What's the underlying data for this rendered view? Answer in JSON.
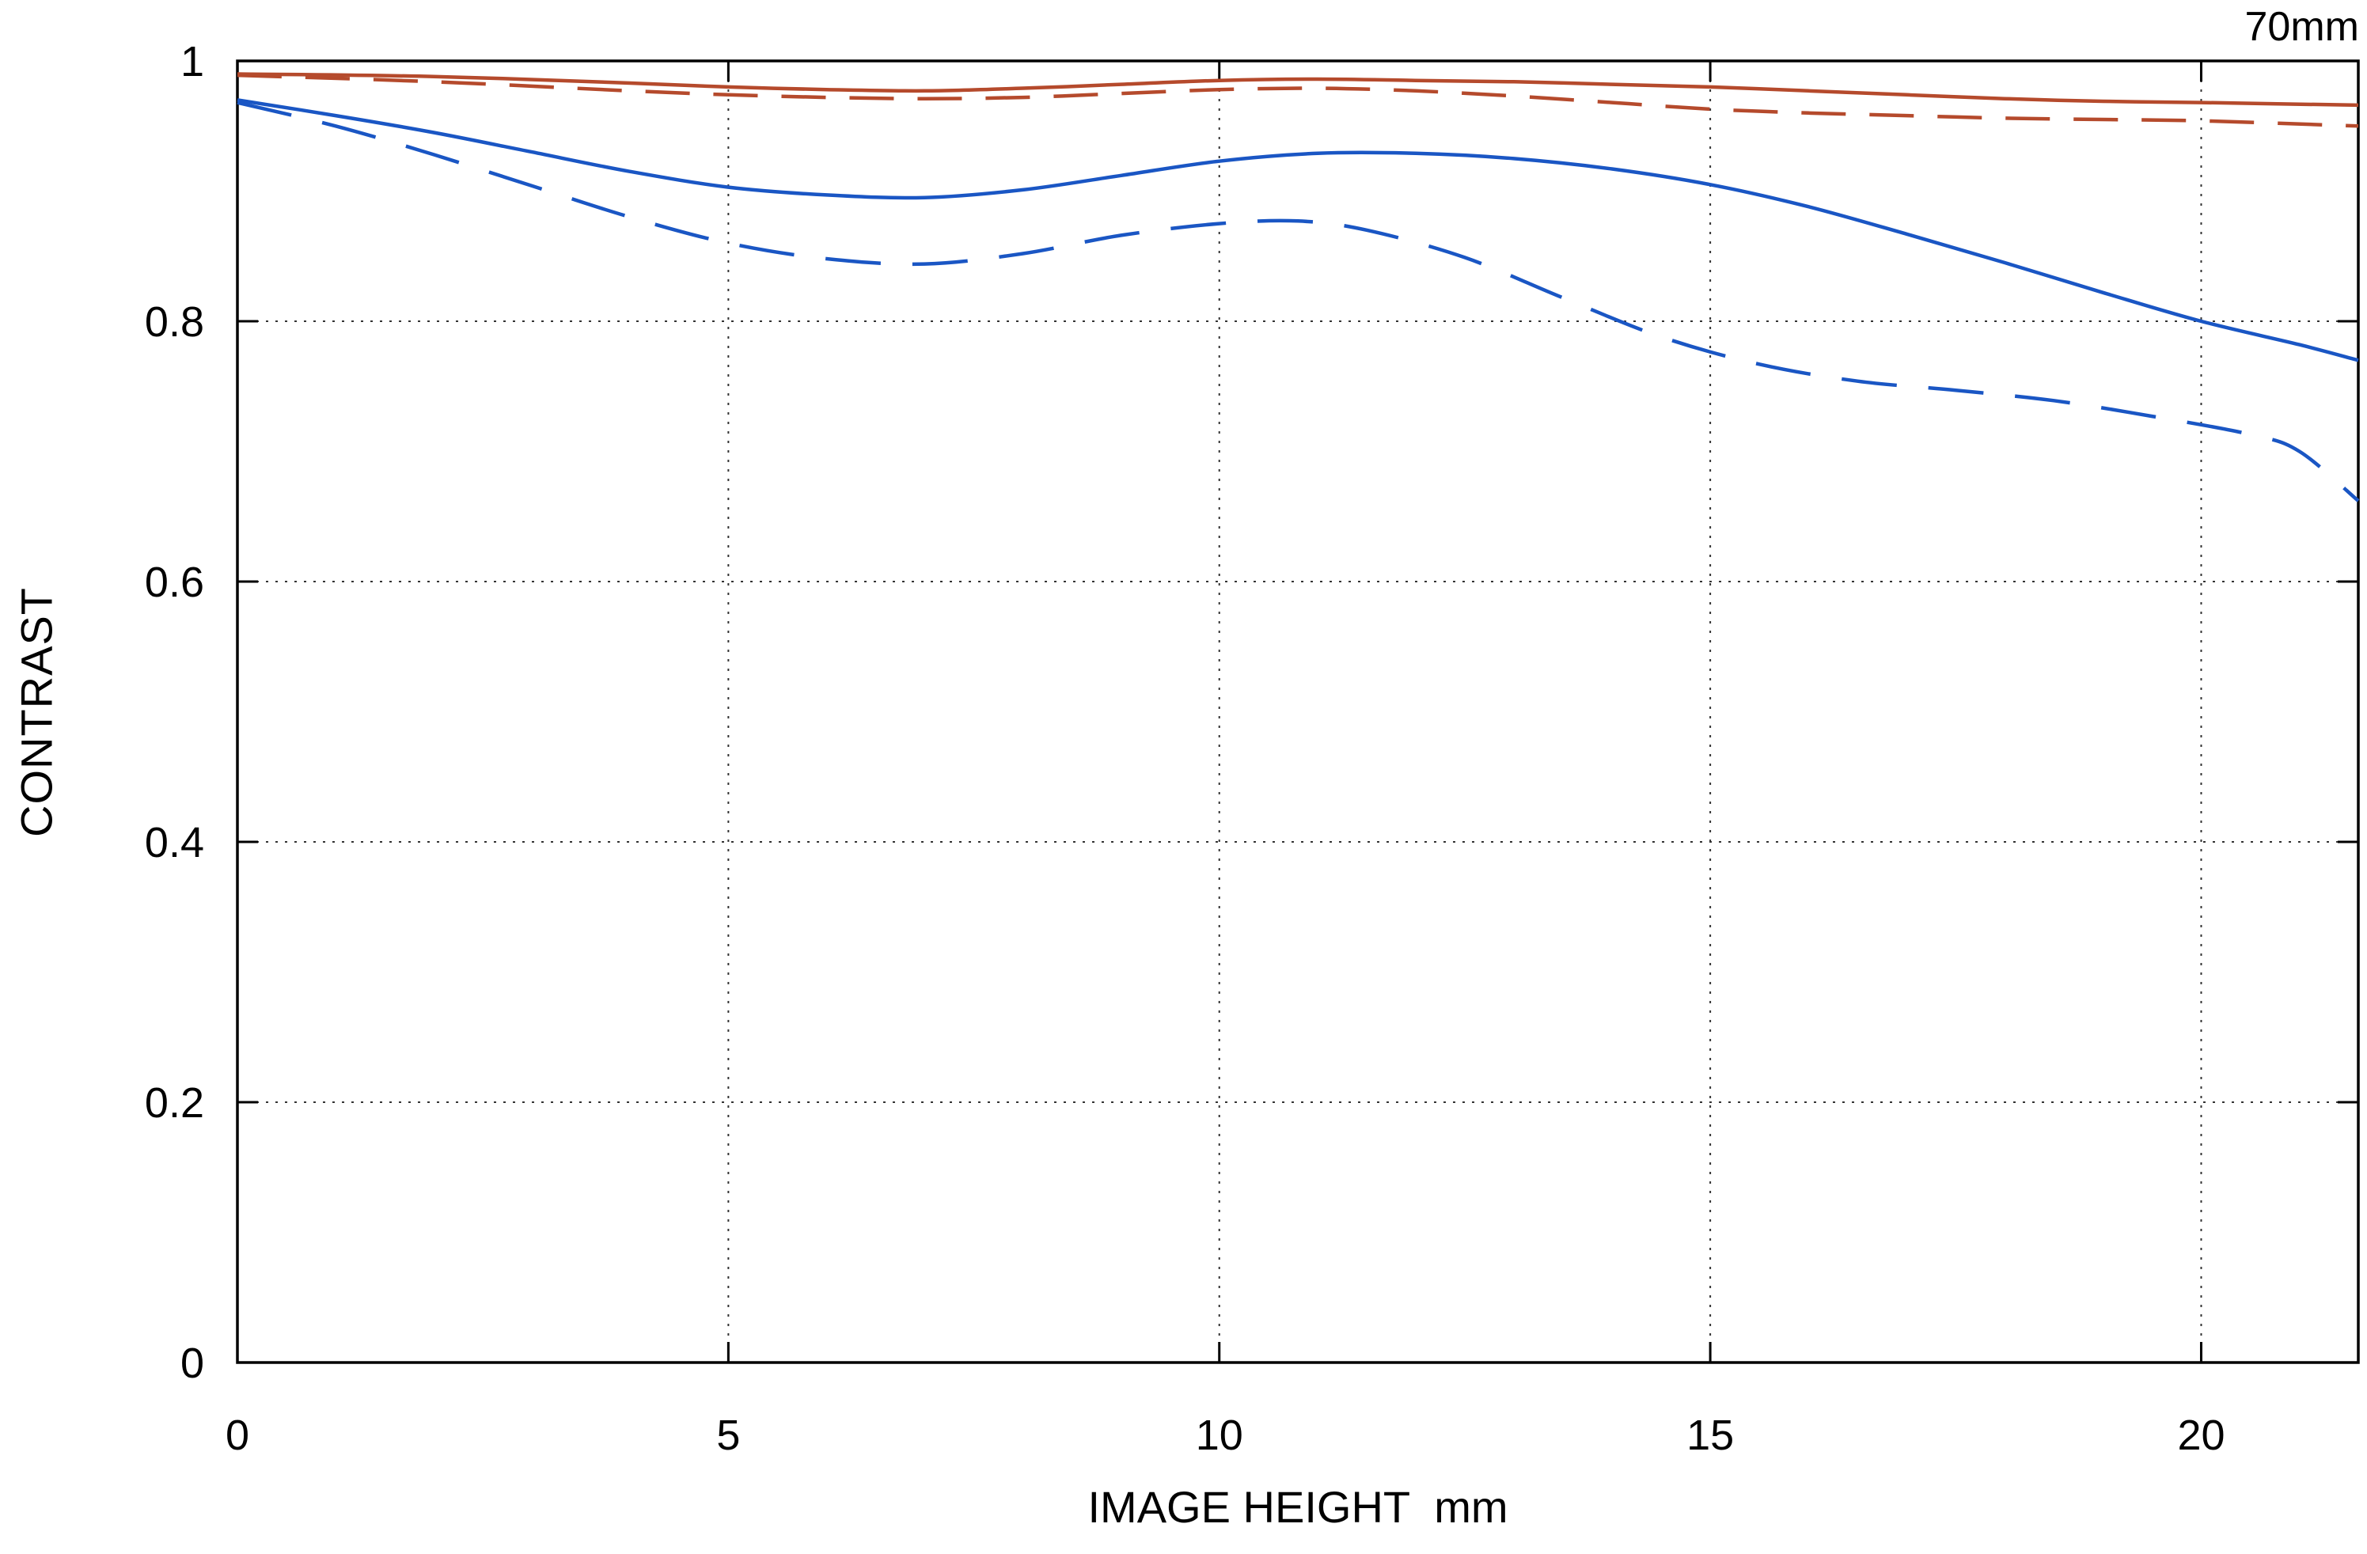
{
  "chart_data": {
    "type": "line",
    "title": "70mm",
    "xlabel": "IMAGE HEIGHT  mm",
    "ylabel": "CONTRAST",
    "xlim": [
      0,
      21.6
    ],
    "ylim": [
      0,
      1
    ],
    "x_ticks": [
      0,
      5,
      10,
      15,
      20
    ],
    "y_ticks": [
      0,
      0.2,
      0.4,
      0.6,
      0.8,
      1
    ],
    "grid": true,
    "grid_style": "dotted",
    "legend_position": "none",
    "series": [
      {
        "name": "red-solid",
        "color": "#b54a2c",
        "line_style": "solid",
        "dash": "none",
        "points": [
          [
            0,
            0.99
          ],
          [
            2,
            0.988
          ],
          [
            4,
            0.983
          ],
          [
            5,
            0.98
          ],
          [
            6,
            0.978
          ],
          [
            7,
            0.977
          ],
          [
            8,
            0.979
          ],
          [
            9,
            0.982
          ],
          [
            10,
            0.985
          ],
          [
            11,
            0.986
          ],
          [
            12,
            0.985
          ],
          [
            13,
            0.984
          ],
          [
            14,
            0.982
          ],
          [
            15,
            0.98
          ],
          [
            16,
            0.977
          ],
          [
            17,
            0.974
          ],
          [
            18,
            0.971
          ],
          [
            19,
            0.969
          ],
          [
            20,
            0.968
          ],
          [
            21.6,
            0.966
          ]
        ]
      },
      {
        "name": "red-dashed",
        "color": "#b54a2c",
        "line_style": "dashed",
        "dash": "56 30",
        "points": [
          [
            0,
            0.989
          ],
          [
            2,
            0.984
          ],
          [
            4,
            0.977
          ],
          [
            5,
            0.974
          ],
          [
            6,
            0.972
          ],
          [
            7,
            0.971
          ],
          [
            8,
            0.972
          ],
          [
            9,
            0.975
          ],
          [
            10,
            0.978
          ],
          [
            11,
            0.979
          ],
          [
            12,
            0.977
          ],
          [
            13,
            0.973
          ],
          [
            14,
            0.968
          ],
          [
            15,
            0.963
          ],
          [
            16,
            0.96
          ],
          [
            17,
            0.958
          ],
          [
            18,
            0.956
          ],
          [
            19,
            0.955
          ],
          [
            20,
            0.954
          ],
          [
            21.6,
            0.95
          ]
        ]
      },
      {
        "name": "blue-solid",
        "color": "#1a56c4",
        "line_style": "solid",
        "dash": "none",
        "points": [
          [
            0,
            0.97
          ],
          [
            1,
            0.958
          ],
          [
            2,
            0.945
          ],
          [
            3,
            0.93
          ],
          [
            4,
            0.915
          ],
          [
            5,
            0.903
          ],
          [
            6,
            0.897
          ],
          [
            7,
            0.895
          ],
          [
            8,
            0.901
          ],
          [
            9,
            0.912
          ],
          [
            10,
            0.923
          ],
          [
            11,
            0.929
          ],
          [
            12,
            0.929
          ],
          [
            13,
            0.925
          ],
          [
            14,
            0.917
          ],
          [
            15,
            0.905
          ],
          [
            16,
            0.888
          ],
          [
            17,
            0.867
          ],
          [
            18,
            0.845
          ],
          [
            19,
            0.822
          ],
          [
            20,
            0.8
          ],
          [
            21,
            0.782
          ],
          [
            21.6,
            0.77
          ]
        ]
      },
      {
        "name": "blue-dashed",
        "color": "#1a56c4",
        "line_style": "dashed",
        "dash": "70 40",
        "points": [
          [
            0,
            0.968
          ],
          [
            1,
            0.95
          ],
          [
            2,
            0.928
          ],
          [
            3,
            0.904
          ],
          [
            4,
            0.88
          ],
          [
            5,
            0.86
          ],
          [
            6,
            0.848
          ],
          [
            7,
            0.844
          ],
          [
            8,
            0.852
          ],
          [
            9,
            0.866
          ],
          [
            10,
            0.875
          ],
          [
            10.8,
            0.877
          ],
          [
            11.5,
            0.87
          ],
          [
            12.5,
            0.849
          ],
          [
            13.5,
            0.818
          ],
          [
            14.5,
            0.788
          ],
          [
            15.5,
            0.767
          ],
          [
            16.5,
            0.754
          ],
          [
            17.5,
            0.747
          ],
          [
            18.5,
            0.739
          ],
          [
            19.5,
            0.727
          ],
          [
            20.5,
            0.713
          ],
          [
            21,
            0.7
          ],
          [
            21.6,
            0.662
          ]
        ]
      }
    ]
  }
}
